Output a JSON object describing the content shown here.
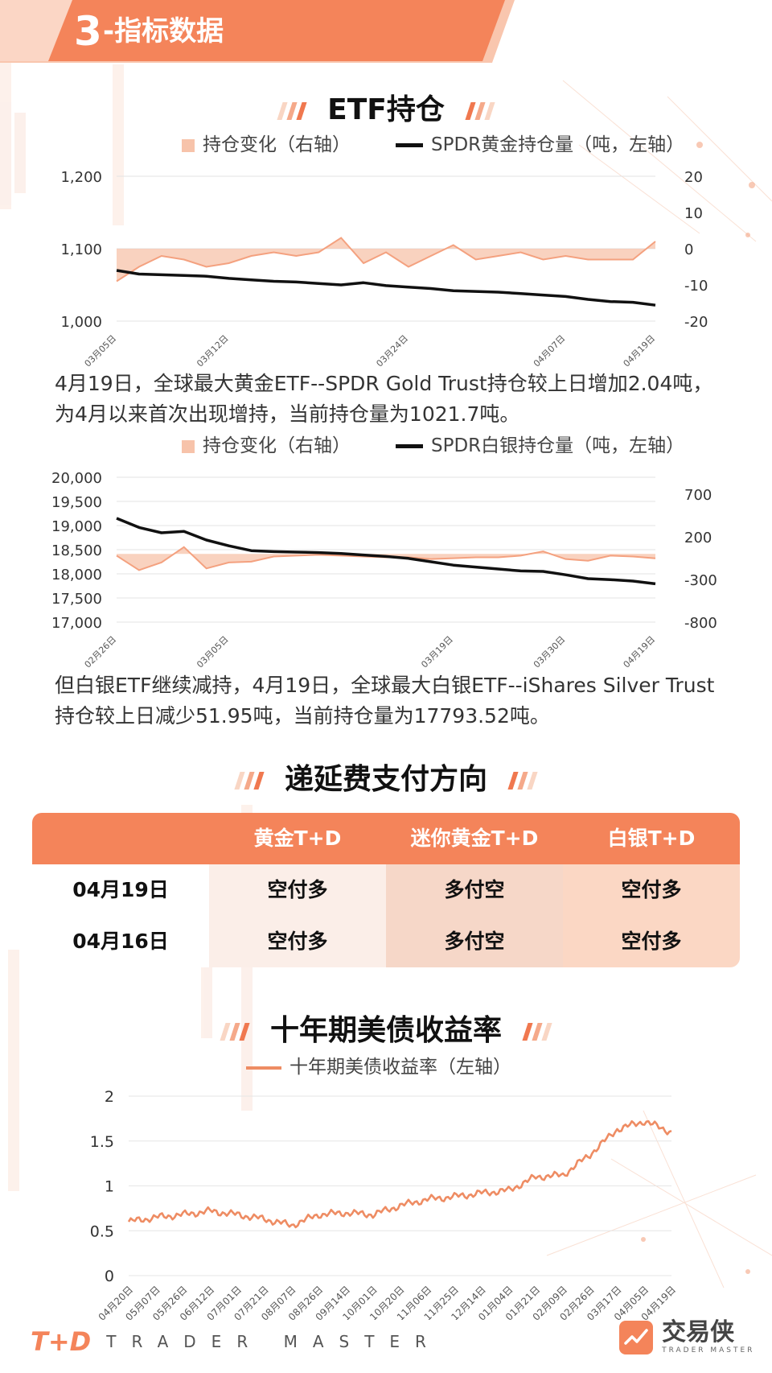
{
  "section": {
    "number": "3",
    "title": "-指标数据"
  },
  "etf_title": "ETF持仓",
  "gold_chart": {
    "legend_area": "持仓变化（右轴）",
    "legend_line": "SPDR黄金持仓量（吨，左轴）",
    "left_ticks": [
      "1,200",
      "1,100",
      "1,000"
    ],
    "right_ticks": [
      "20",
      "10",
      "0",
      "-10",
      "-20"
    ],
    "x_ticks": [
      "03月05日",
      "03月12日",
      "03月24日",
      "04月07日",
      "04月19日"
    ]
  },
  "gold_text": "4月19日，全球最大黄金ETF--SPDR Gold Trust持仓较上日增加2.04吨，为4月以来首次出现增持，当前持仓量为1021.7吨。",
  "silver_chart": {
    "legend_area": "持仓变化（右轴）",
    "legend_line": "SPDR白银持仓量（吨，左轴）",
    "left_ticks": [
      "20,000",
      "19,500",
      "19,000",
      "18,500",
      "18,000",
      "17,500",
      "17,000"
    ],
    "right_ticks": [
      "700",
      "200",
      "-300",
      "-800"
    ],
    "x_ticks": [
      "02月26日",
      "03月05日",
      "03月19日",
      "03月30日",
      "04月19日"
    ]
  },
  "silver_text": "但白银ETF继续减持，4月19日，全球最大白银ETF--iShares Silver Trust持仓较上日减少51.95吨，当前持仓量为17793.52吨。",
  "deferred_title": "递延费支付方向",
  "deferred_table": {
    "headers": [
      "黄金T+D",
      "迷你黄金T+D",
      "白银T+D"
    ],
    "rows": [
      {
        "date": "04月19日",
        "values": [
          "空付多",
          "多付空",
          "空付多"
        ]
      },
      {
        "date": "04月16日",
        "values": [
          "空付多",
          "多付空",
          "空付多"
        ]
      }
    ]
  },
  "treasury_title": "十年期美债收益率",
  "treasury_chart": {
    "legend": "十年期美债收益率（左轴）",
    "y_ticks": [
      "2",
      "1.5",
      "1",
      "0.5",
      "0"
    ],
    "x_ticks": [
      "04月20日",
      "05月07日",
      "05月26日",
      "06月12日",
      "07月01日",
      "07月21日",
      "08月07日",
      "08月26日",
      "09月14日",
      "10月01日",
      "10月20日",
      "11月06日",
      "11月25日",
      "12月14日",
      "01月04日",
      "01月21日",
      "02月09日",
      "02月26日",
      "03月17日",
      "04月05日",
      "04月19日"
    ]
  },
  "footer": {
    "logo": "T+D",
    "brand": "TRADER MASTER",
    "app_name": "交易侠",
    "app_sub": "TRADER MASTER"
  },
  "colors": {
    "accent": "#f4845a",
    "area": "#f7c3aa",
    "line": "#111111",
    "treasury_line": "#ee8c63"
  },
  "chart_data": [
    {
      "type": "line",
      "title": "",
      "note": "SPDR gold holdings (left axis, tonnes) with daily change area (right axis)",
      "x": [
        "03月05日",
        "03月08日",
        "03月09日",
        "03月10日",
        "03月11日",
        "03月12日",
        "03月15日",
        "03月16日",
        "03月17日",
        "03月18日",
        "03月19日",
        "03月22日",
        "03月23日",
        "03月24日",
        "03月25日",
        "03月26日",
        "03月29日",
        "03月30日",
        "03月31日",
        "04月01日",
        "04月07日",
        "04月08日",
        "04月09日",
        "04月12日",
        "04月19日"
      ],
      "series": [
        {
          "name": "SPDR黄金持仓量（吨，左轴）",
          "axis": "left",
          "values": [
            1070,
            1065,
            1064,
            1063,
            1062,
            1059,
            1057,
            1055,
            1054,
            1052,
            1050,
            1053,
            1049,
            1047,
            1045,
            1042,
            1041,
            1040,
            1038,
            1036,
            1034,
            1030,
            1027,
            1026,
            1022
          ]
        },
        {
          "name": "持仓变化（右轴）",
          "axis": "right",
          "type": "area",
          "values": [
            -9,
            -5,
            -2,
            -3,
            -5,
            -4,
            -2,
            -1,
            -2,
            -1,
            3,
            -4,
            -1,
            -5,
            -2,
            1,
            -3,
            -2,
            -1,
            -3,
            -2,
            -3,
            -3,
            -3,
            2
          ]
        }
      ],
      "ylim_left": [
        1000,
        1200
      ],
      "ylim_right": [
        -20,
        20
      ]
    },
    {
      "type": "line",
      "title": "",
      "note": "Silver ETF holdings (left axis, tonnes) with daily change area (right axis)",
      "x": [
        "02月26日",
        "03月01日",
        "03月02日",
        "03月03日",
        "03月04日",
        "03月05日",
        "03月08日",
        "03月09日",
        "03月10日",
        "03月11日",
        "03月12日",
        "03月15日",
        "03月16日",
        "03月17日",
        "03月18日",
        "03月19日",
        "03月22日",
        "03月23日",
        "03月24日",
        "03月25日",
        "03月30日",
        "03月31日",
        "04月01日",
        "04月12日",
        "04月19日"
      ],
      "series": [
        {
          "name": "SPDR白银持仓量（吨，左轴）",
          "axis": "left",
          "values": [
            19150,
            18960,
            18850,
            18880,
            18700,
            18580,
            18480,
            18460,
            18450,
            18440,
            18420,
            18390,
            18360,
            18320,
            18250,
            18180,
            18140,
            18100,
            18060,
            18050,
            17980,
            17900,
            17880,
            17850,
            17793.52
          ]
        },
        {
          "name": "持仓变化（右轴）",
          "axis": "right",
          "type": "area",
          "values": [
            -20,
            -190,
            -100,
            80,
            -170,
            -100,
            -90,
            -30,
            -20,
            -10,
            -20,
            -30,
            -40,
            -40,
            -60,
            -50,
            -40,
            -40,
            -20,
            30,
            -60,
            -80,
            -20,
            -30,
            -52
          ]
        }
      ],
      "ylim_left": [
        17000,
        20000
      ],
      "ylim_right": [
        -800,
        900
      ]
    },
    {
      "type": "line",
      "title": "",
      "series_name": "十年期美债收益率（左轴）",
      "x": [
        "04月20日",
        "05月07日",
        "05月26日",
        "06月12日",
        "07月01日",
        "07月21日",
        "08月07日",
        "08月26日",
        "09月14日",
        "10月01日",
        "10月20日",
        "11月06日",
        "11月25日",
        "12月14日",
        "01月04日",
        "01月21日",
        "02月09日",
        "02月26日",
        "03月17日",
        "04月05日",
        "04月19日"
      ],
      "values": [
        0.6,
        0.65,
        0.68,
        0.72,
        0.68,
        0.63,
        0.56,
        0.68,
        0.7,
        0.68,
        0.78,
        0.85,
        0.88,
        0.92,
        0.95,
        1.1,
        1.12,
        1.35,
        1.63,
        1.72,
        1.6
      ],
      "ylim": [
        0,
        2
      ]
    }
  ]
}
